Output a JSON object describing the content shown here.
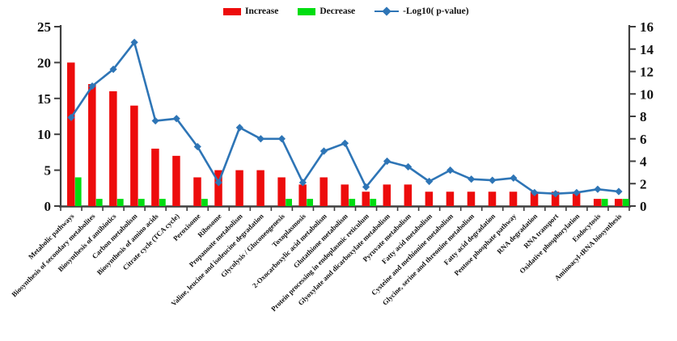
{
  "chart_data": {
    "type": "bar-line-combo",
    "title": "",
    "xlabel": "",
    "ylabel_left": "",
    "ylabel_right": "",
    "grid": false,
    "legend_position": "top-center",
    "categories": [
      "Metabolic pathways",
      "Biosynthesis of secondary metabolites",
      "Biosynthesis of antibiotics",
      "Carbon metabolism",
      "Biosynthesis of amino acids",
      "Citrate cycle (TCA cycle)",
      "Peroxisome",
      "Ribosome",
      "Propanoate metabolism",
      "Valine, leucine and isoleucine degradation",
      "Glycolysis / Gluconeogenesis",
      "Toxoplasmosis",
      "2-Oxocarboxylic acid metabolism",
      "Glutathione metabolism",
      "Protein processing in endoplasmic reticulum",
      "Glyoxylate and dicarboxylate metabolism",
      "Pyruvate metabolism",
      "Fatty acid metabolism",
      "Cysteine and methionine metabolism",
      "Glycine, serine and threonine metabolism",
      "Fatty acid degradation",
      "Pentose phosphate pathway",
      "RNA degradation",
      "RNA transport",
      "Oxidative phosphorylation",
      "Endocytosis",
      "Aminoacyl-tRNA biosynthesis"
    ],
    "series": [
      {
        "name": "Increase",
        "type": "bar",
        "axis": "left",
        "color": "#ed0c0c",
        "values": [
          20,
          17,
          16,
          14,
          8,
          7,
          4,
          5,
          5,
          5,
          4,
          3,
          4,
          3,
          2,
          3,
          3,
          2,
          2,
          2,
          2,
          2,
          2,
          2,
          2,
          1,
          1
        ]
      },
      {
        "name": "Decrease",
        "type": "bar",
        "axis": "left",
        "color": "#00dd11",
        "values": [
          4,
          1,
          1,
          1,
          1,
          0,
          1,
          0,
          0,
          0,
          1,
          1,
          0,
          1,
          1,
          0,
          0,
          0,
          0,
          0,
          0,
          0,
          0,
          0,
          0,
          1,
          1
        ]
      },
      {
        "name": "-Log10( p-value)",
        "type": "line",
        "axis": "right",
        "color": "#2e75b6",
        "marker": "diamond",
        "values": [
          7.9,
          10.7,
          12.2,
          14.6,
          7.6,
          7.8,
          5.3,
          2.1,
          7.0,
          6.0,
          6.0,
          2.1,
          4.9,
          5.6,
          1.7,
          4.0,
          3.5,
          2.2,
          3.2,
          2.4,
          2.3,
          2.5,
          1.2,
          1.1,
          1.2,
          1.5,
          1.3
        ]
      }
    ],
    "left_axis": {
      "min": 0,
      "max": 25,
      "tick_step": 5,
      "ticks": [
        0,
        5,
        10,
        15,
        20,
        25
      ]
    },
    "right_axis": {
      "min": 0,
      "max": 16,
      "tick_step": 2,
      "ticks": [
        0,
        2,
        4,
        6,
        8,
        10,
        12,
        14,
        16
      ]
    },
    "axis_color": "#3f3f3f",
    "text_color": "#111111"
  }
}
